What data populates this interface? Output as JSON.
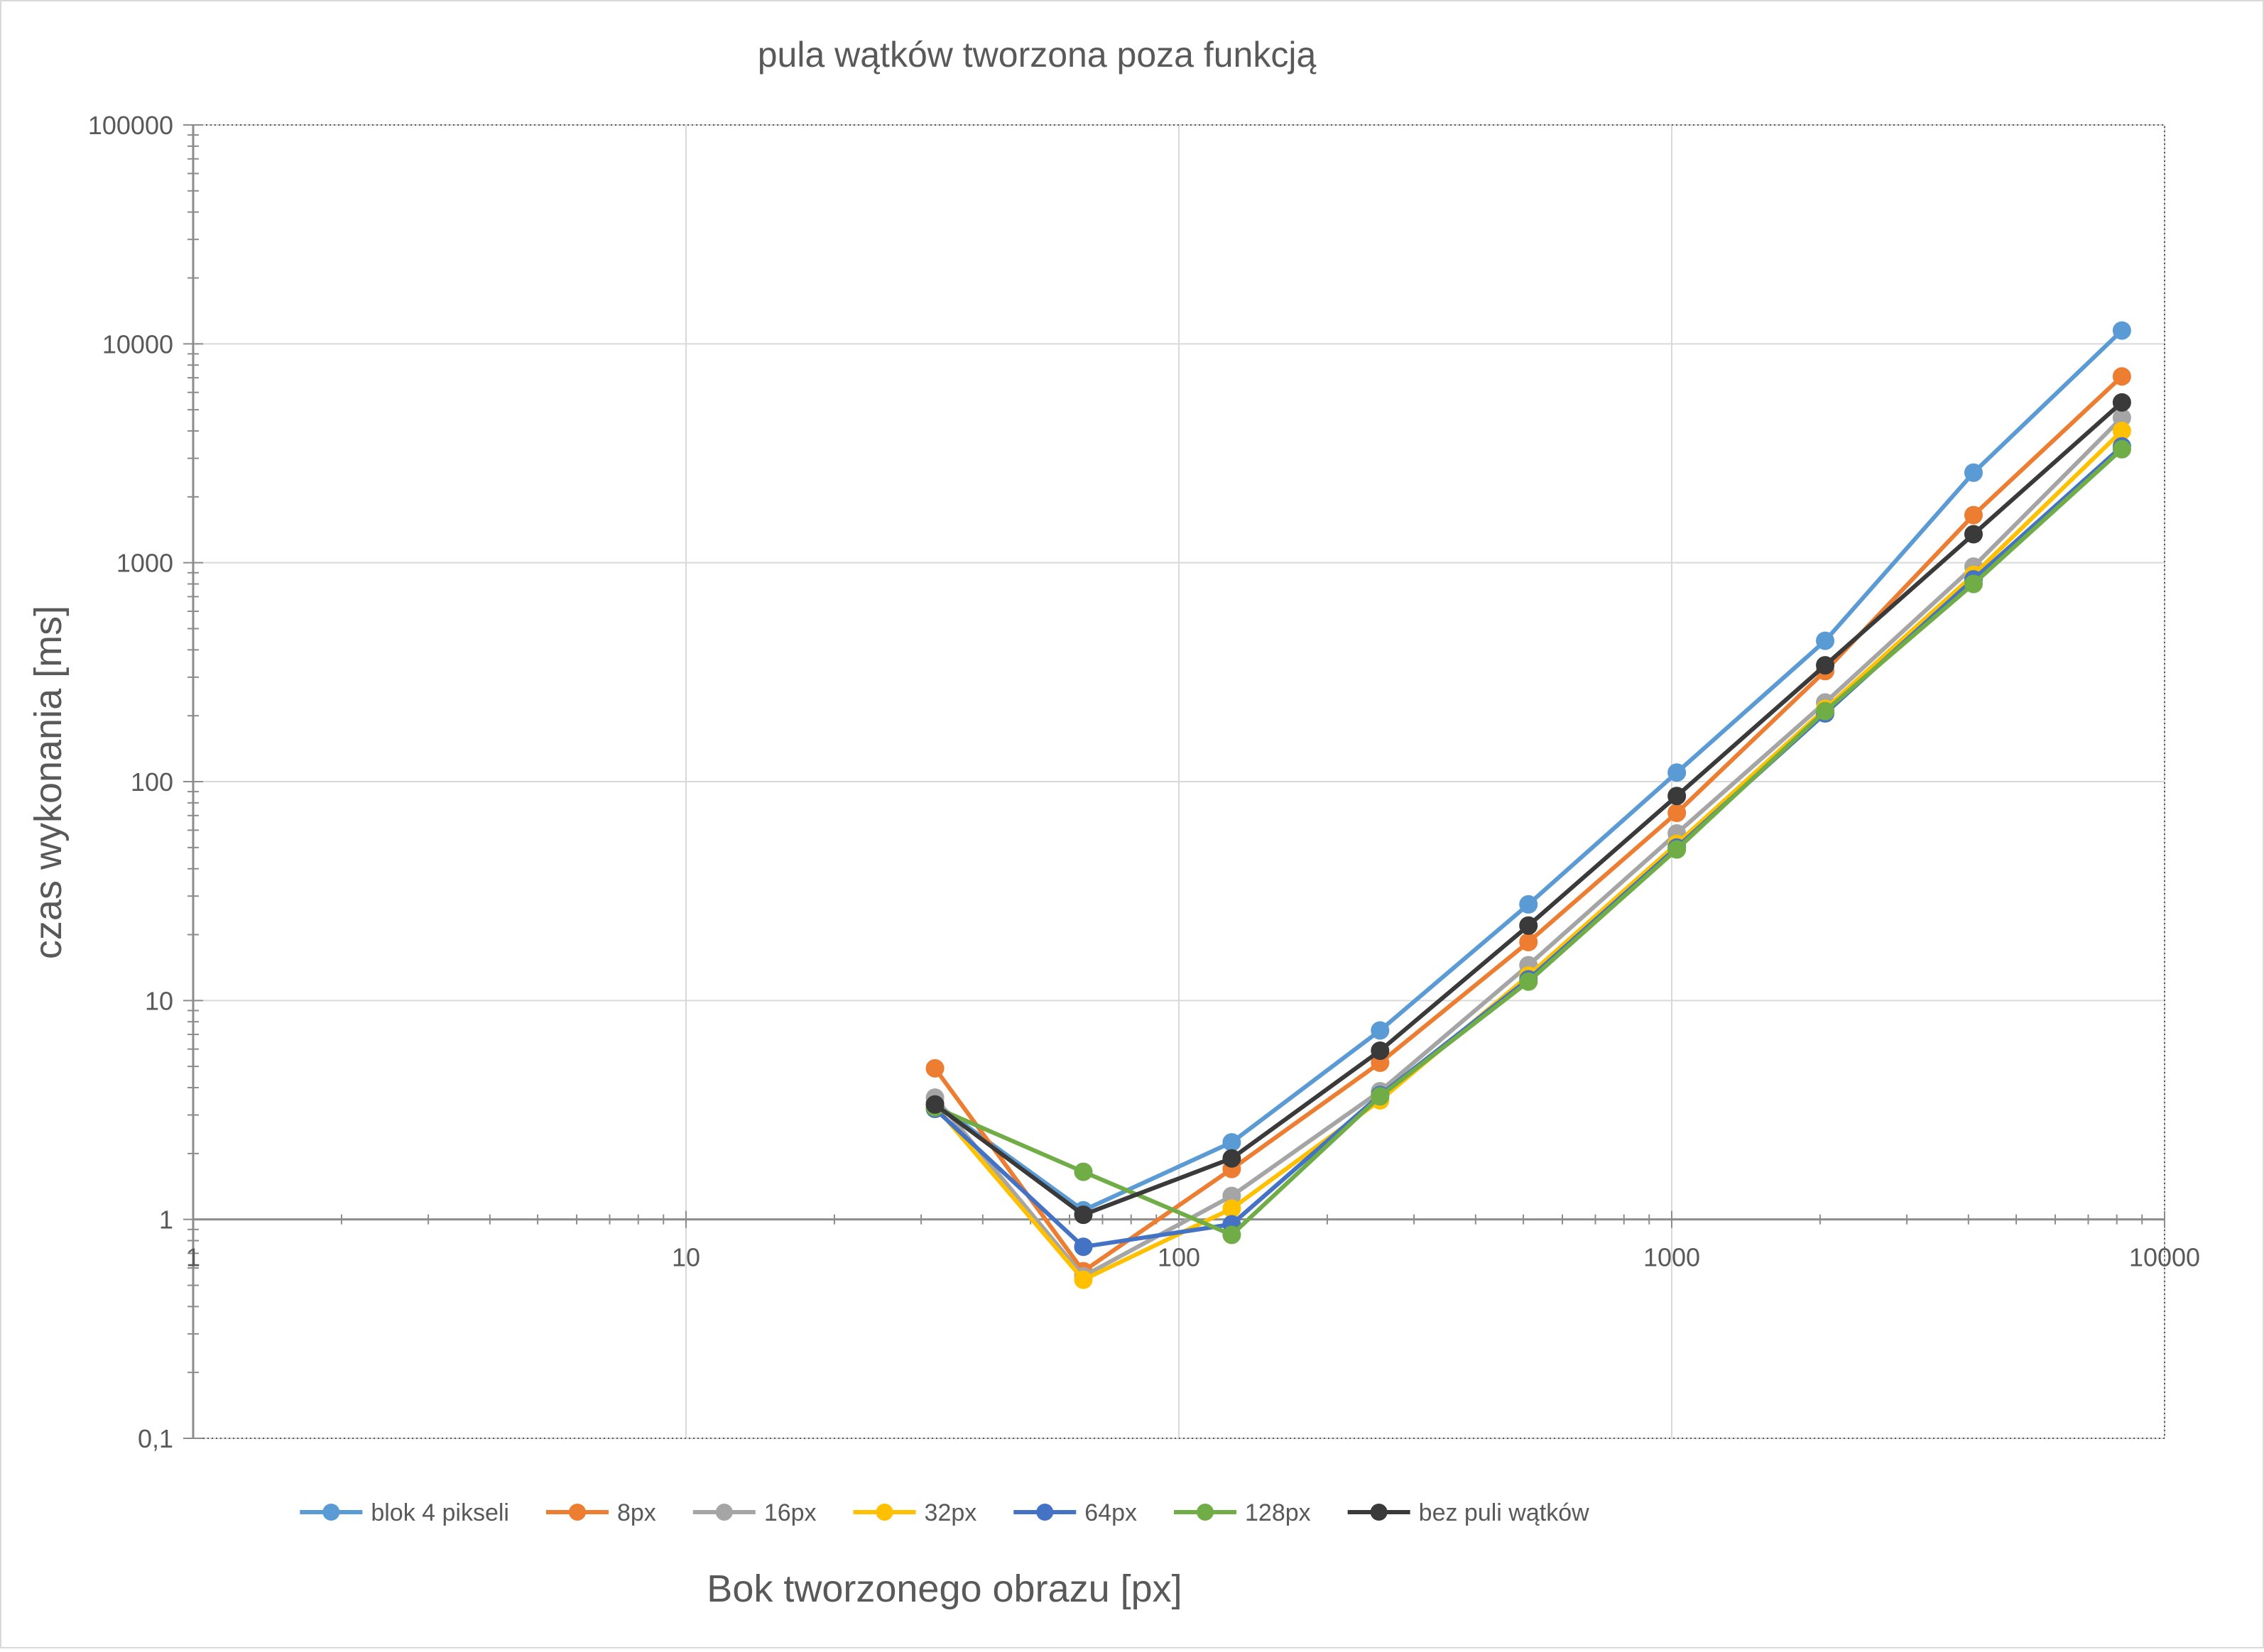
{
  "chart_data": {
    "type": "line",
    "title": "pula wątków tworzona poza funkcją",
    "xlabel": "Bok tworzonego obrazu [px]",
    "ylabel": "czas wykonania [ms]",
    "x_scale": "log",
    "y_scale": "log",
    "xlim": [
      1,
      10000
    ],
    "ylim": [
      0.1,
      100000
    ],
    "x_ticks": [
      1,
      10,
      100,
      1000,
      10000
    ],
    "x_tick_labels": [
      "1",
      "10",
      "100",
      "1000",
      "10000"
    ],
    "y_ticks": [
      0.1,
      1,
      10,
      100,
      1000,
      10000,
      100000
    ],
    "y_tick_labels": [
      "0,1",
      "1",
      "10",
      "100",
      "1000",
      "10000",
      "100000"
    ],
    "grid": true,
    "legend_position": "bottom",
    "x": [
      32,
      64,
      128,
      256,
      512,
      1024,
      2048,
      4096,
      8192
    ],
    "series": [
      {
        "name": "blok 4 pikseli",
        "color": "#5b9bd5",
        "values": [
          3.4,
          1.1,
          2.25,
          7.3,
          27.5,
          110,
          440,
          2580,
          11500
        ]
      },
      {
        "name": "8px",
        "color": "#ed7d31",
        "values": [
          4.9,
          0.58,
          1.7,
          5.2,
          18.5,
          72,
          320,
          1650,
          7100
        ]
      },
      {
        "name": "16px",
        "color": "#a5a5a5",
        "values": [
          3.6,
          0.55,
          1.28,
          3.85,
          14.5,
          58,
          230,
          960,
          4600
        ]
      },
      {
        "name": "32px",
        "color": "#ffc000",
        "values": [
          3.3,
          0.53,
          1.12,
          3.5,
          13,
          52,
          215,
          880,
          4000
        ]
      },
      {
        "name": "64px",
        "color": "#4472c4",
        "values": [
          3.2,
          0.75,
          0.95,
          3.7,
          12.5,
          50,
          205,
          840,
          3400
        ]
      },
      {
        "name": "128px",
        "color": "#70ad47",
        "values": [
          3.25,
          1.65,
          0.85,
          3.65,
          12.2,
          49,
          210,
          800,
          3300
        ]
      },
      {
        "name": "bez puli wątków",
        "color": "#3a3a3a",
        "values": [
          3.35,
          1.05,
          1.9,
          5.9,
          22,
          86,
          340,
          1350,
          5400
        ]
      }
    ]
  }
}
